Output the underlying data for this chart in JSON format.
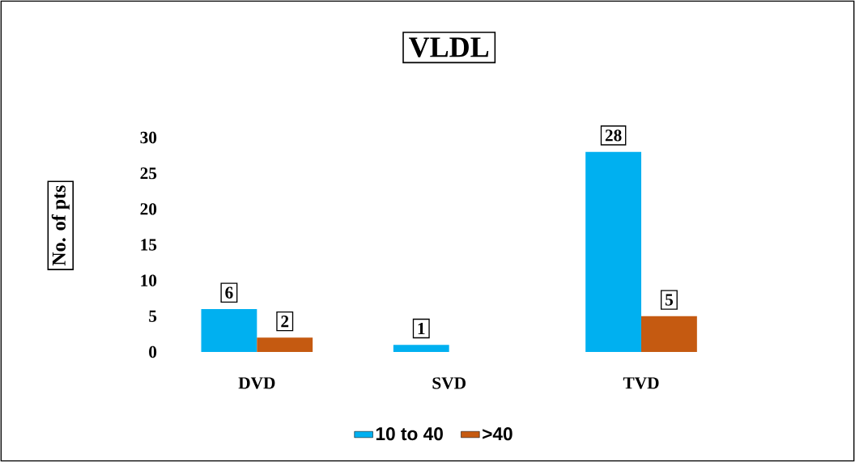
{
  "chart_data": {
    "type": "bar",
    "title": "VLDL",
    "ylabel": "No. of pts",
    "categories": [
      "DVD",
      "SVD",
      "TVD"
    ],
    "series": [
      {
        "name": "10 to 40",
        "color": "#00b0f0",
        "values": [
          6,
          1,
          28
        ]
      },
      {
        "name": ">40",
        "color": "#c55a11",
        "values": [
          2,
          null,
          5
        ]
      }
    ],
    "ylim": [
      0,
      30
    ],
    "yticks": [
      0,
      5,
      10,
      15,
      20,
      25,
      30
    ],
    "data_labels": true,
    "legend": "bottom",
    "grid": false
  }
}
